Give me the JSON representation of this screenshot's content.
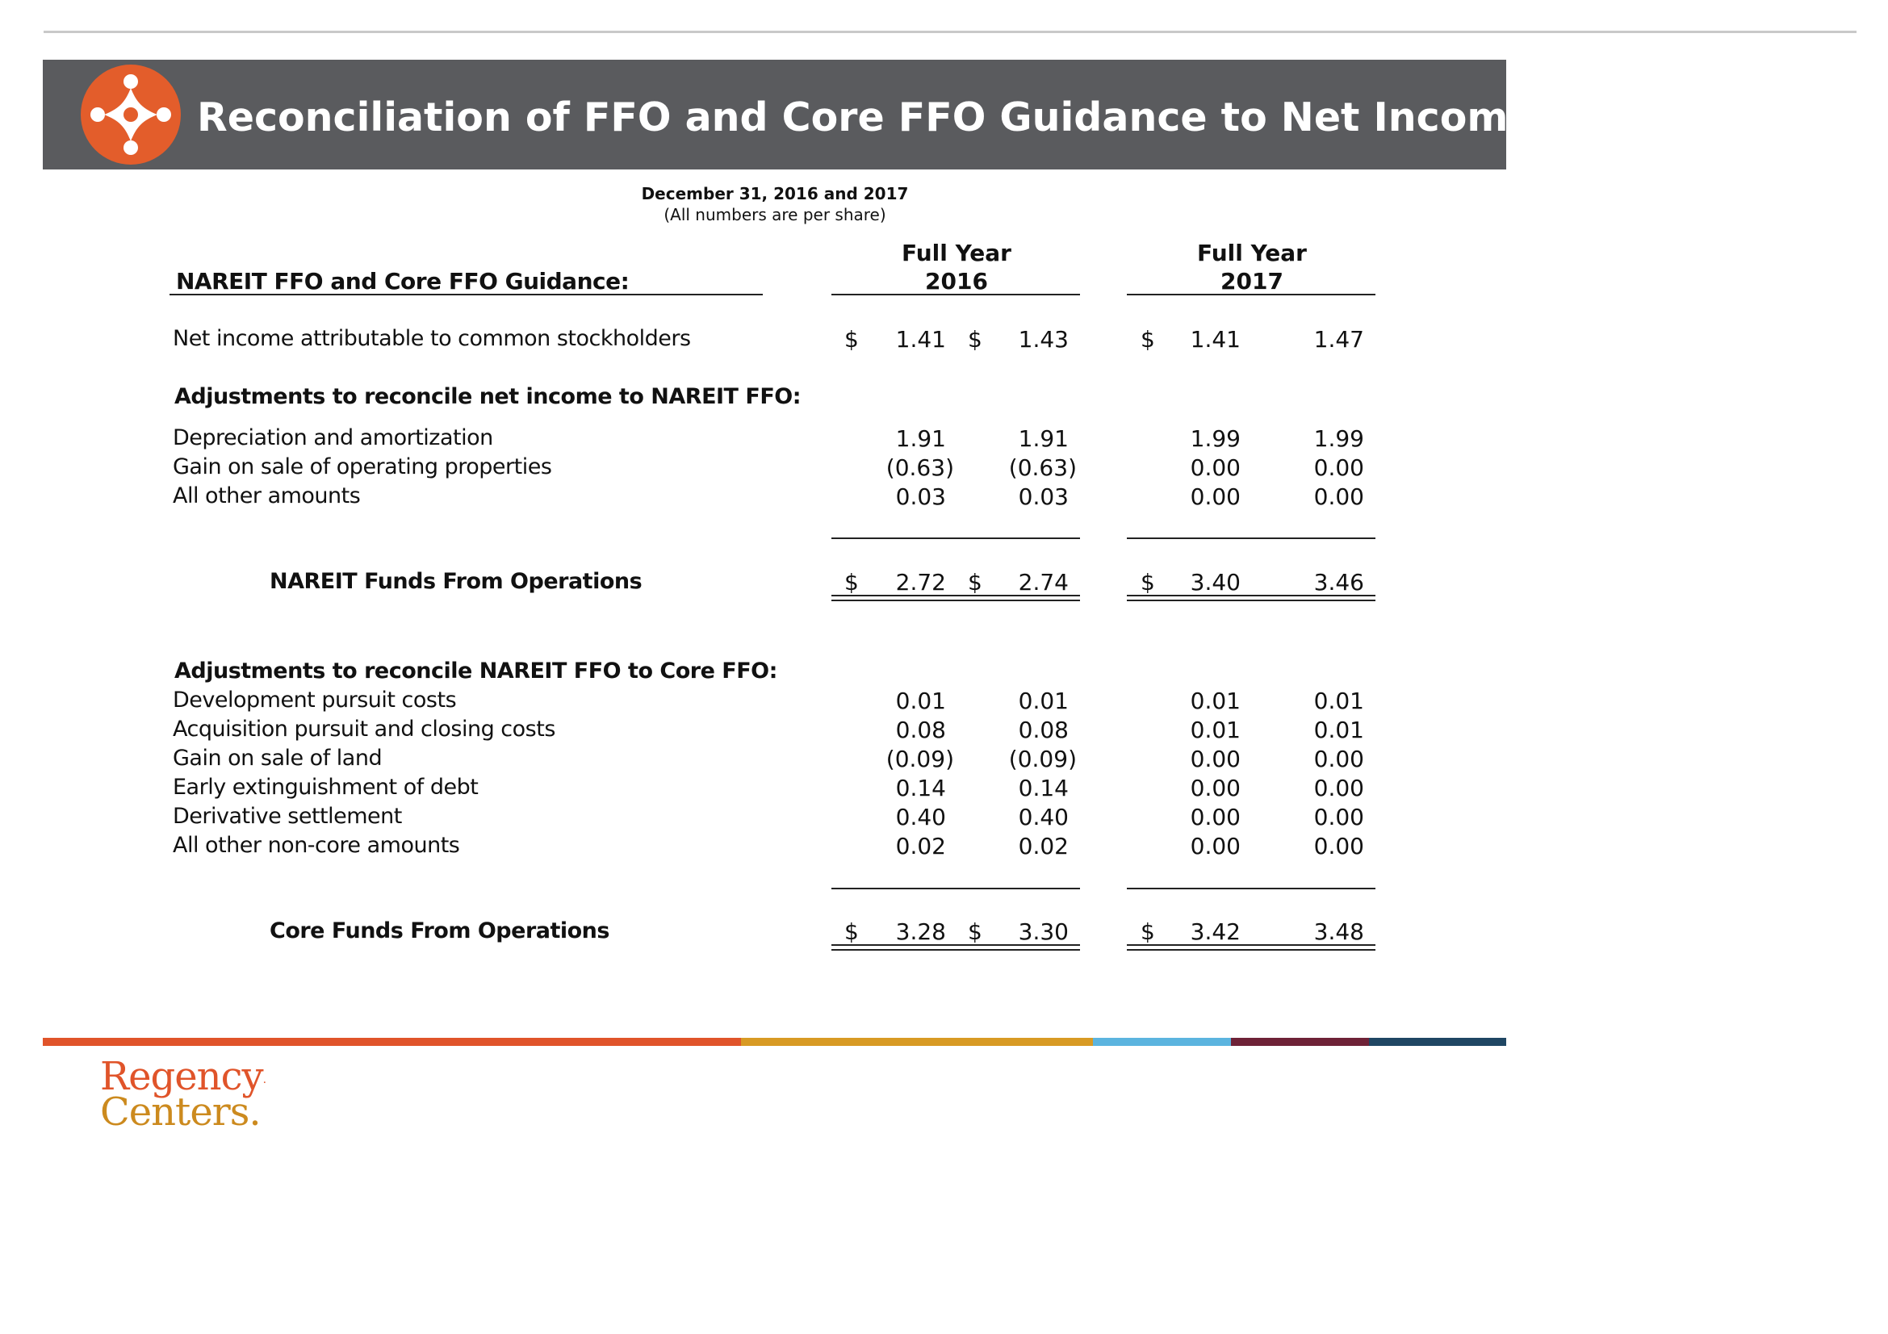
{
  "header": {
    "title": "Reconciliation of FFO and Core FFO Guidance to Net Income",
    "logo_icon": "regency-star-icon",
    "banner_color": "#5a5b5e",
    "logo_color": "#e35d2b"
  },
  "period": {
    "date": "December 31, 2016  and 2017",
    "note": "(All numbers are per share)"
  },
  "table": {
    "section_label": "NAREIT FFO and Core FFO Guidance:",
    "col_2016_line1": "Full Year",
    "col_2016_line2": "2016",
    "col_2017_line1": "Full Year",
    "col_2017_line2": "2017",
    "currency": "$",
    "net_income": {
      "label": "Net income attributable to common stockholders",
      "v": [
        "1.41",
        "1.43",
        "1.41",
        "1.47"
      ]
    },
    "adj1_heading": "Adjustments to reconcile net income to NAREIT FFO:",
    "adj1_rows": [
      {
        "label": "Depreciation and amortization",
        "v": [
          "1.91",
          "1.91",
          "1.99",
          "1.99"
        ]
      },
      {
        "label": "Gain on sale of operating properties",
        "v": [
          "(0.63)",
          "(0.63)",
          "0.00",
          "0.00"
        ]
      },
      {
        "label": "All other amounts",
        "v": [
          "0.03",
          "0.03",
          "0.00",
          "0.00"
        ]
      }
    ],
    "nareit_ffo": {
      "label": "NAREIT Funds From Operations",
      "v": [
        "2.72",
        "2.74",
        "3.40",
        "3.46"
      ]
    },
    "adj2_heading": "Adjustments to reconcile NAREIT FFO to Core FFO:",
    "adj2_rows": [
      {
        "label": "Development pursuit costs",
        "v": [
          "0.01",
          "0.01",
          "0.01",
          "0.01"
        ]
      },
      {
        "label": "Acquisition pursuit and closing costs",
        "v": [
          "0.08",
          "0.08",
          "0.01",
          "0.01"
        ]
      },
      {
        "label": "Gain on sale of land",
        "v": [
          "(0.09)",
          "(0.09)",
          "0.00",
          "0.00"
        ]
      },
      {
        "label": "Early extinguishment of debt",
        "v": [
          "0.14",
          "0.14",
          "0.00",
          "0.00"
        ]
      },
      {
        "label": "Derivative settlement",
        "v": [
          "0.40",
          "0.40",
          "0.00",
          "0.00"
        ]
      },
      {
        "label": "All other non-core amounts",
        "v": [
          "0.02",
          "0.02",
          "0.00",
          "0.00"
        ]
      }
    ],
    "core_ffo": {
      "label": "Core Funds From Operations",
      "v": [
        "3.28",
        "3.30",
        "3.42",
        "3.48"
      ]
    }
  },
  "footer": {
    "brand_line1": "Regency",
    "brand_line2": "Centers.",
    "brand_mark": "·",
    "stripe_colors": [
      "#e0542a",
      "#d89a24",
      "#5bb4df",
      "#6e2237",
      "#1f4663"
    ]
  }
}
